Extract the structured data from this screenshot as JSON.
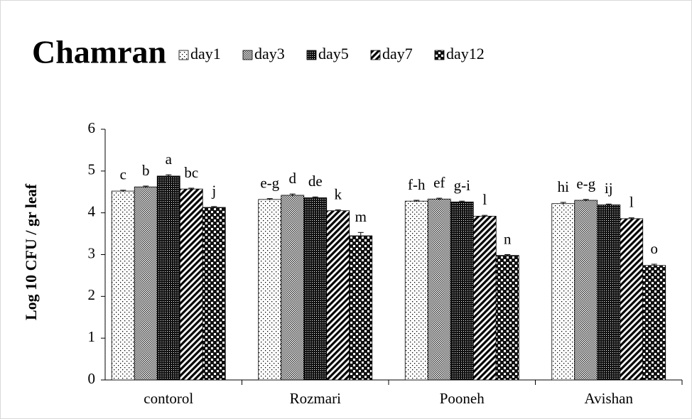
{
  "chart_data": {
    "type": "bar",
    "title": "Chamran",
    "ylabel": "Log 10 CFU / gr leaf",
    "categories": [
      "contorol",
      "Rozmari",
      "Pooneh",
      "Avishan"
    ],
    "series": [
      {
        "name": "day1",
        "values": [
          4.52,
          4.32,
          4.28,
          4.22
        ],
        "errors": [
          0.02,
          0.02,
          0.02,
          0.03
        ],
        "letters": [
          "c",
          "e-g",
          "f-h",
          "hi"
        ]
      },
      {
        "name": "day3",
        "values": [
          4.62,
          4.42,
          4.33,
          4.3
        ],
        "errors": [
          0.02,
          0.03,
          0.02,
          0.02
        ],
        "letters": [
          "b",
          "d",
          "ef",
          "e-g"
        ]
      },
      {
        "name": "day5",
        "values": [
          4.88,
          4.36,
          4.26,
          4.19
        ],
        "errors": [
          0.03,
          0.02,
          0.02,
          0.02
        ],
        "letters": [
          "a",
          "de",
          "g-i",
          "ij"
        ]
      },
      {
        "name": "day7",
        "values": [
          4.57,
          4.05,
          3.92,
          3.86
        ],
        "errors": [
          0.02,
          0.02,
          0.02,
          0.02
        ],
        "letters": [
          "bc",
          "k",
          "l",
          "l"
        ]
      },
      {
        "name": "day12",
        "values": [
          4.13,
          3.45,
          2.98,
          2.74
        ],
        "errors": [
          0.02,
          0.08,
          0.02,
          0.03
        ],
        "letters": [
          "j",
          "m",
          "n",
          "o"
        ]
      }
    ],
    "ylim": [
      0,
      6
    ],
    "yticks": [
      0,
      1,
      2,
      3,
      4,
      5,
      6
    ],
    "legend": "top"
  }
}
